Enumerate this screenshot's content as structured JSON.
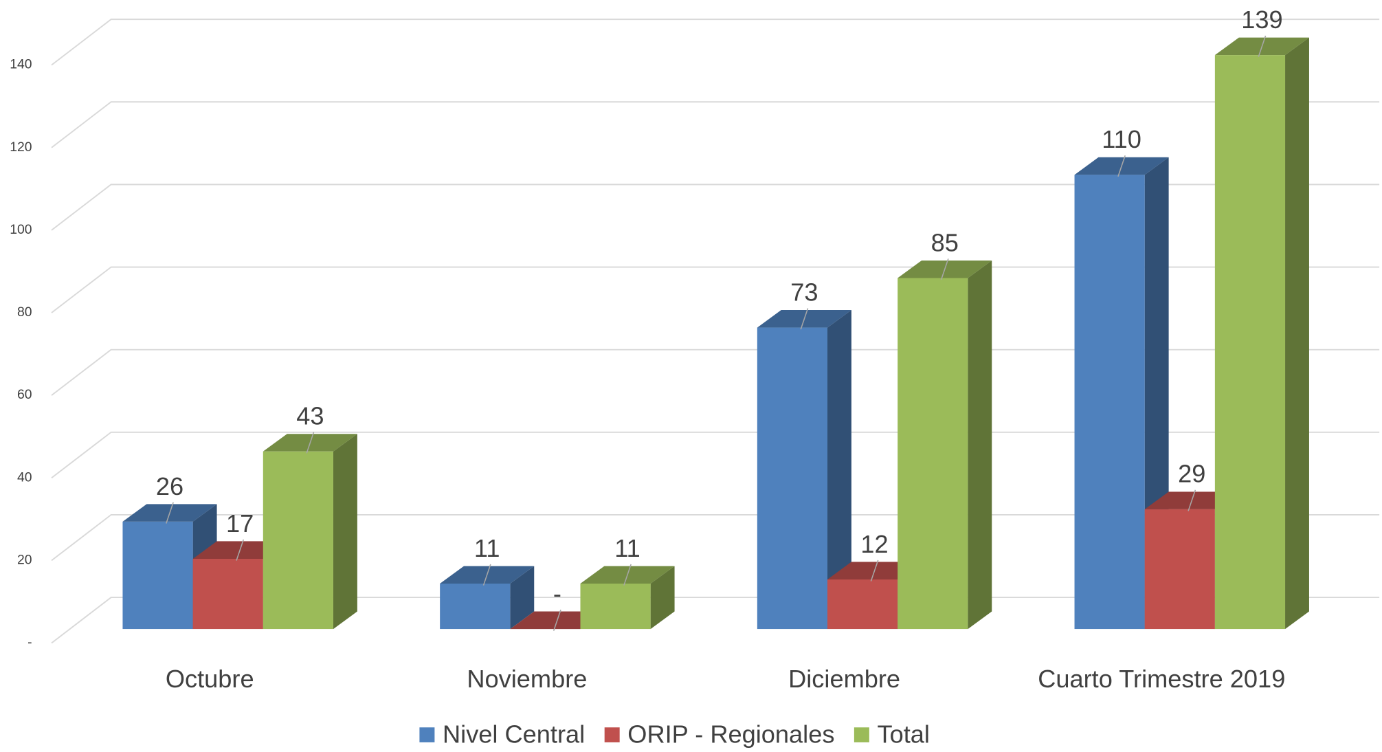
{
  "chart_data": {
    "type": "bar3d",
    "categories": [
      "Octubre",
      "Noviembre",
      "Diciembre",
      "Cuarto Trimestre 2019"
    ],
    "series": [
      {
        "name": "Nivel Central",
        "color": "#4f81bd",
        "values": [
          26,
          11,
          73,
          110
        ]
      },
      {
        "name": "ORIP - Regionales",
        "color": "#c0504d",
        "values": [
          17,
          0,
          12,
          29
        ],
        "value_labels": [
          "17",
          "-",
          "12",
          "29"
        ]
      },
      {
        "name": "Total",
        "color": "#9bbb59",
        "values": [
          43,
          11,
          85,
          139
        ]
      }
    ],
    "ylim": [
      0,
      140
    ],
    "yticks": [
      {
        "value": 0,
        "label": "-"
      },
      20,
      40,
      60,
      80,
      100,
      120,
      140
    ],
    "grid": true,
    "legend": "bottom"
  }
}
